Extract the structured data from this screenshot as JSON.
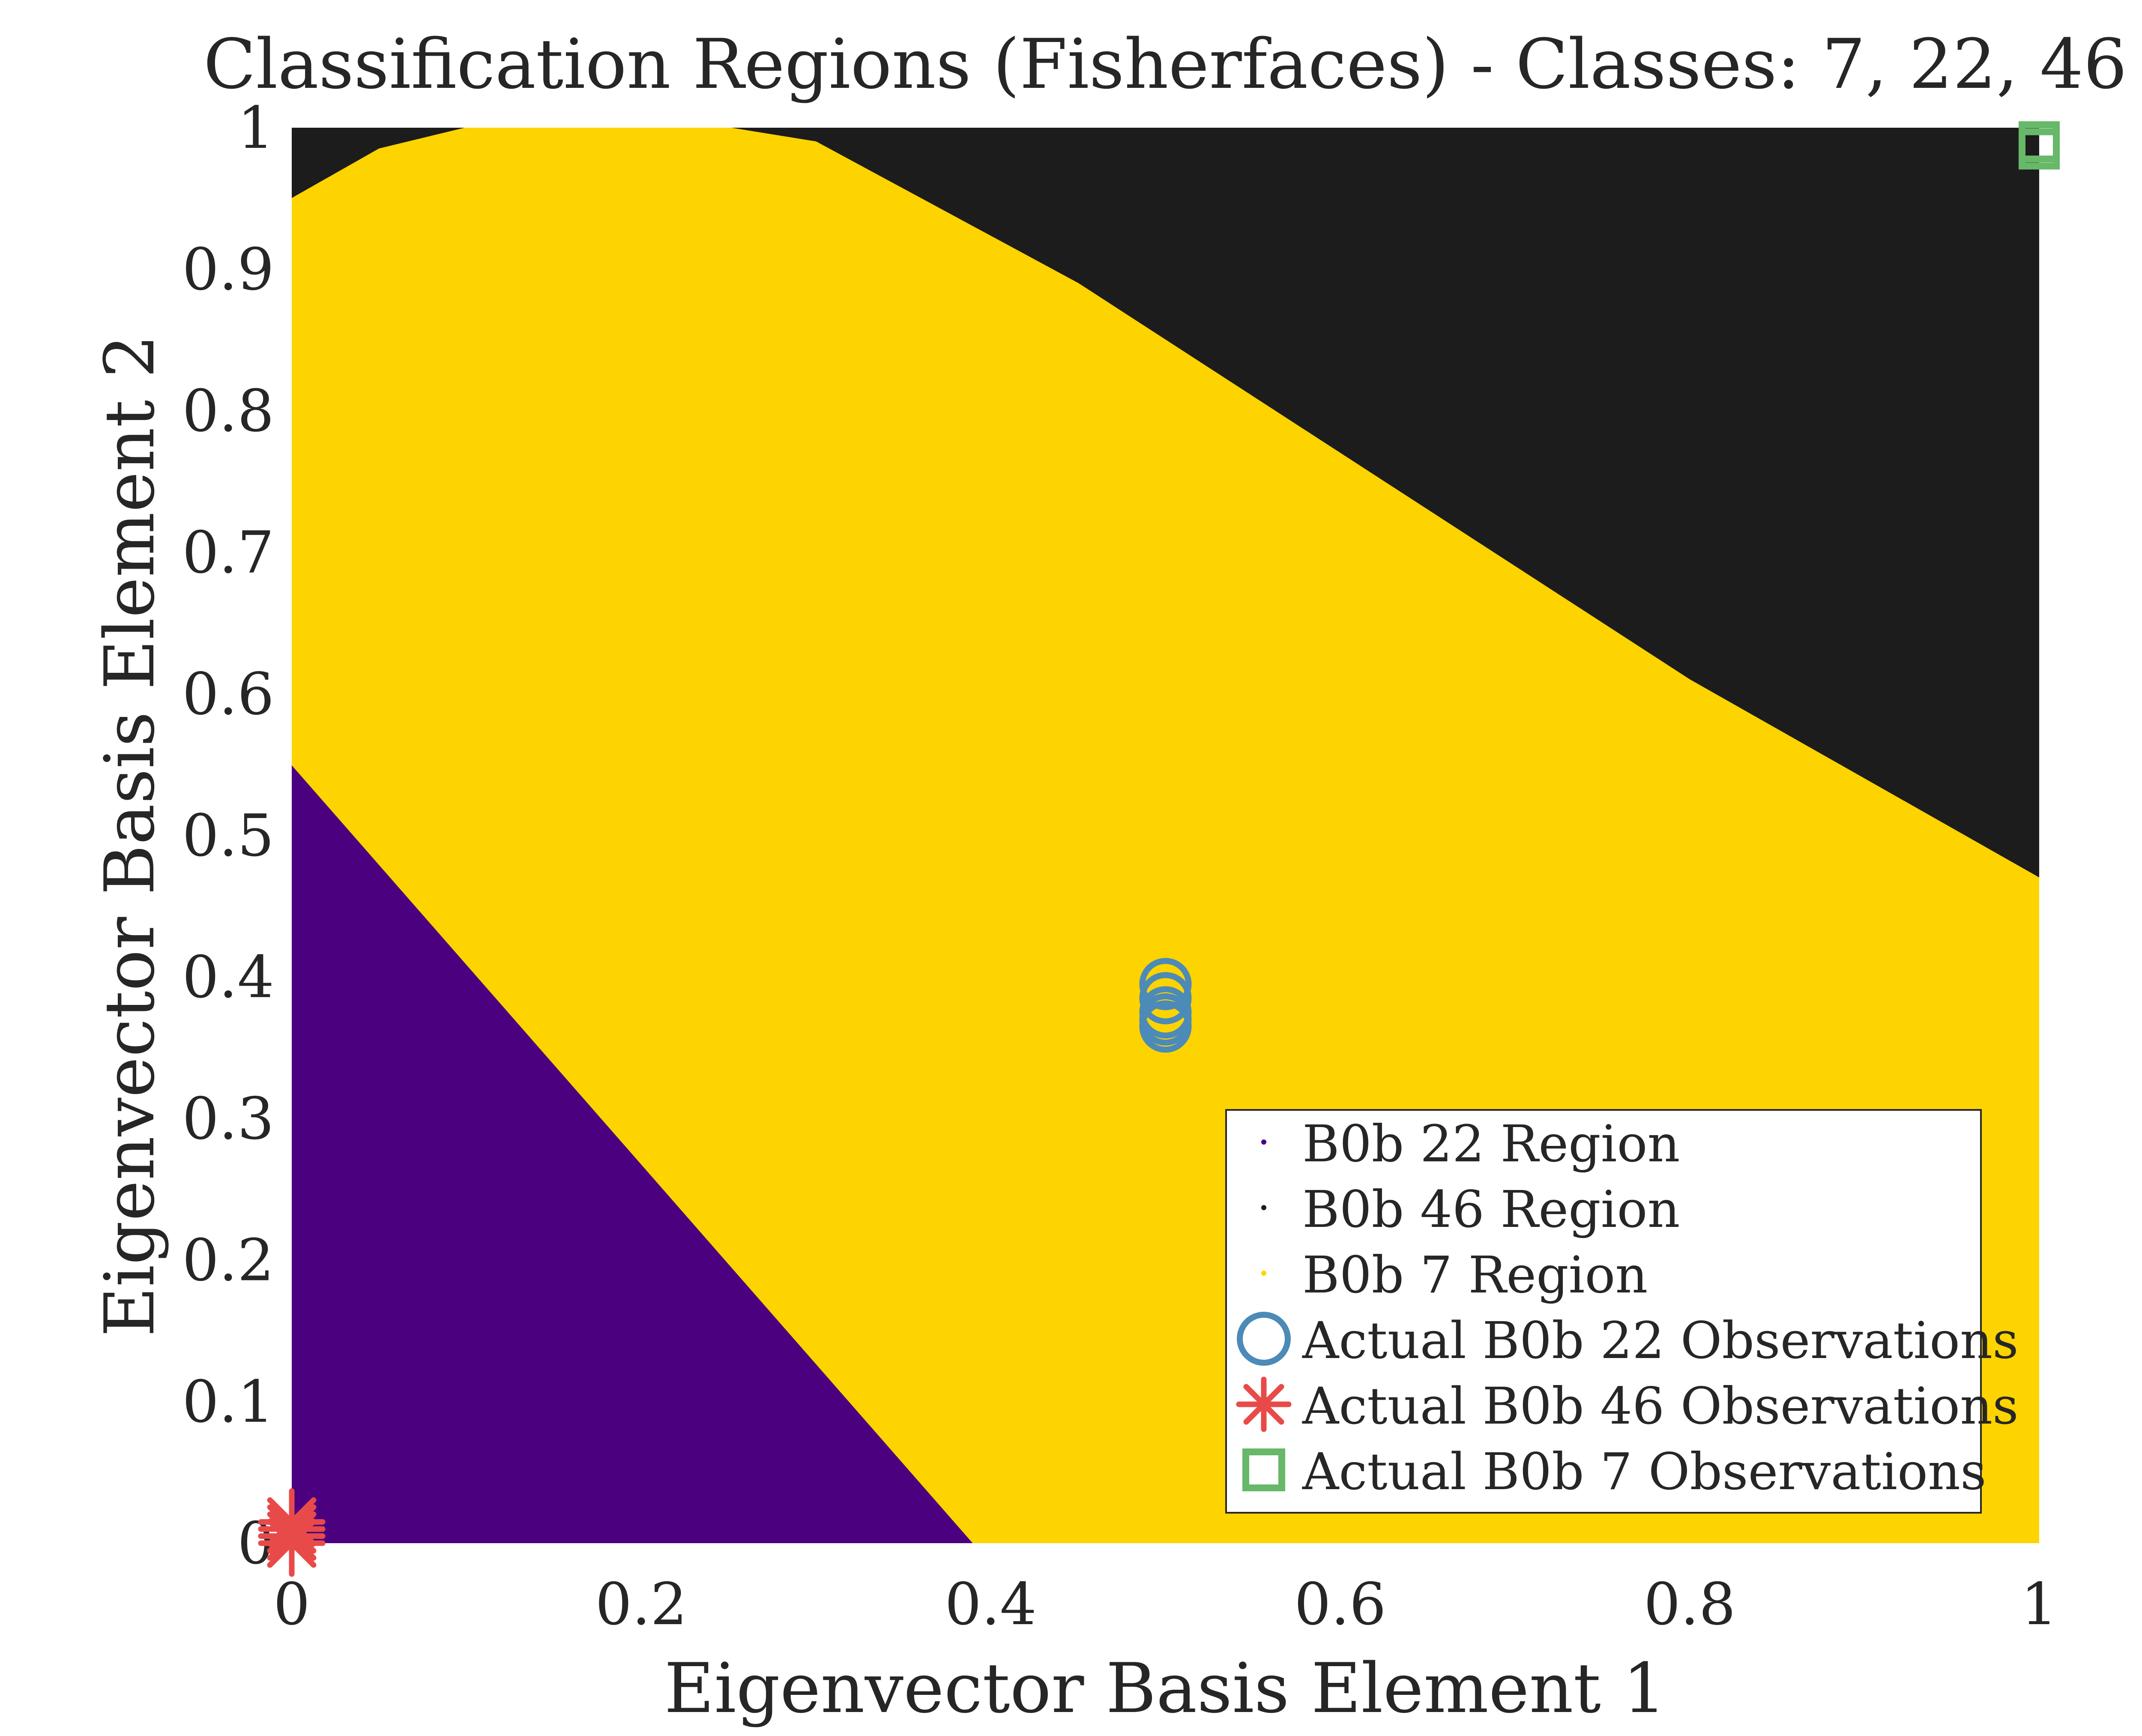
{
  "chart_data": {
    "type": "scatter",
    "title": "Classification Regions (Fisherfaces) - Classes: 7, 22, 46",
    "xlabel": "Eigenvector Basis Element 1",
    "ylabel": "Eigenvector Basis Element 2",
    "xlim": [
      0,
      1
    ],
    "ylim": [
      0,
      1
    ],
    "x_ticks": [
      0,
      0.2,
      0.4,
      0.6,
      0.8,
      1
    ],
    "y_ticks": [
      0,
      0.1,
      0.2,
      0.3,
      0.4,
      0.5,
      0.6,
      0.7,
      0.8,
      0.9,
      1
    ],
    "x_tick_labels": [
      "0",
      "0.2",
      "0.4",
      "0.6",
      "0.8",
      "1"
    ],
    "y_tick_labels": [
      "0",
      "0.1",
      "0.2",
      "0.3",
      "0.4",
      "0.5",
      "0.6",
      "0.7",
      "0.8",
      "0.9",
      "1"
    ],
    "grid": false,
    "legend_position": "lower-right",
    "regions": [
      {
        "name": "B0b 22 Region",
        "color": "#4b007f",
        "polygon": [
          [
            0,
            0
          ],
          [
            0,
            0.55
          ],
          [
            0.39,
            0
          ]
        ]
      },
      {
        "name": "B0b 46 Region",
        "color": "#1c1c1c",
        "polygon": [
          [
            0,
            0.95
          ],
          [
            0,
            1
          ],
          [
            1,
            1
          ],
          [
            1,
            0.47
          ],
          [
            0.8,
            0.61
          ],
          [
            0.6,
            0.77
          ],
          [
            0.45,
            0.89
          ],
          [
            0.3,
            0.99
          ],
          [
            0.25,
            1
          ],
          [
            0.1,
            1
          ],
          [
            0.05,
            0.985
          ]
        ]
      },
      {
        "name": "B0b 7 Region",
        "color": "#fdd300",
        "polygon": [
          [
            0,
            0.55
          ],
          [
            0.39,
            0
          ],
          [
            1,
            0
          ],
          [
            1,
            0.47
          ],
          [
            0.8,
            0.61
          ],
          [
            0.6,
            0.77
          ],
          [
            0.45,
            0.89
          ],
          [
            0.3,
            0.99
          ],
          [
            0.25,
            1
          ],
          [
            0.1,
            1
          ],
          [
            0.05,
            0.985
          ],
          [
            0,
            0.95
          ]
        ]
      }
    ],
    "series": [
      {
        "name": "Actual B0b 22 Observations",
        "marker": "circle",
        "color": "#4c8ab8",
        "points": [
          [
            0.5,
            0.395
          ],
          [
            0.5,
            0.385
          ],
          [
            0.5,
            0.375
          ],
          [
            0.5,
            0.37
          ],
          [
            0.5,
            0.365
          ]
        ]
      },
      {
        "name": "Actual B0b 46 Observations",
        "marker": "asterisk",
        "color": "#e84a4a",
        "points": [
          [
            0,
            0.015
          ],
          [
            0,
            0.01
          ],
          [
            0,
            0.005
          ],
          [
            0,
            0
          ]
        ]
      },
      {
        "name": "Actual B0b 7 Observations",
        "marker": "square",
        "color": "#67b868",
        "points": [
          [
            1,
            0.99
          ],
          [
            1,
            0.985
          ]
        ]
      }
    ],
    "legend": [
      {
        "label": "B0b 22 Region",
        "symbol": "dot",
        "color": "#4b007f"
      },
      {
        "label": "B0b 46 Region",
        "symbol": "dot",
        "color": "#1c1c1c"
      },
      {
        "label": "B0b 7 Region",
        "symbol": "dot",
        "color": "#fdd300"
      },
      {
        "label": "Actual B0b 22 Observations",
        "symbol": "circle",
        "color": "#4c8ab8"
      },
      {
        "label": "Actual B0b 46 Observations",
        "symbol": "asterisk",
        "color": "#e84a4a"
      },
      {
        "label": "Actual B0b 7 Observations",
        "symbol": "square",
        "color": "#67b868"
      }
    ]
  }
}
